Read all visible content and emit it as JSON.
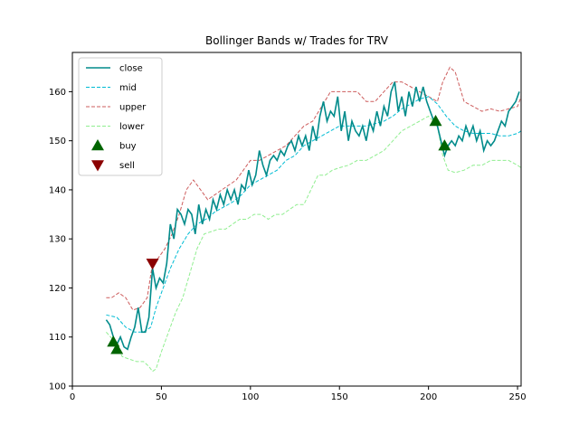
{
  "chart_data": {
    "type": "line",
    "title": "Bollinger Bands w/ Trades for TRV",
    "xlabel": "",
    "ylabel": "",
    "xlim": [
      0,
      252
    ],
    "ylim": [
      100,
      168
    ],
    "x_ticks": [
      0,
      50,
      100,
      150,
      200,
      250
    ],
    "y_ticks": [
      100,
      110,
      120,
      130,
      140,
      150,
      160
    ],
    "grid": false,
    "legend_position": "top-left",
    "series": [
      {
        "name": "close",
        "color": "#008b8b",
        "style": "solid",
        "points": [
          [
            19,
            113.5
          ],
          [
            21,
            112.5
          ],
          [
            23,
            110
          ],
          [
            25,
            108.5
          ],
          [
            27,
            110
          ],
          [
            29,
            108
          ],
          [
            31,
            107.5
          ],
          [
            33,
            110
          ],
          [
            35,
            112
          ],
          [
            37,
            116
          ],
          [
            39,
            111
          ],
          [
            41,
            111
          ],
          [
            43,
            114
          ],
          [
            45,
            124
          ],
          [
            47,
            120
          ],
          [
            49,
            122
          ],
          [
            51,
            121
          ],
          [
            53,
            125
          ],
          [
            55,
            133
          ],
          [
            57,
            130
          ],
          [
            59,
            136
          ],
          [
            61,
            135
          ],
          [
            63,
            133
          ],
          [
            65,
            136
          ],
          [
            67,
            135
          ],
          [
            69,
            131
          ],
          [
            71,
            137
          ],
          [
            73,
            133
          ],
          [
            75,
            136
          ],
          [
            77,
            134
          ],
          [
            79,
            138
          ],
          [
            81,
            136
          ],
          [
            83,
            139
          ],
          [
            85,
            137
          ],
          [
            87,
            140
          ],
          [
            89,
            138
          ],
          [
            91,
            140
          ],
          [
            93,
            137
          ],
          [
            95,
            141
          ],
          [
            97,
            140
          ],
          [
            99,
            144
          ],
          [
            101,
            141
          ],
          [
            103,
            143
          ],
          [
            105,
            148
          ],
          [
            107,
            145
          ],
          [
            109,
            143
          ],
          [
            111,
            146
          ],
          [
            113,
            147
          ],
          [
            115,
            146
          ],
          [
            117,
            148
          ],
          [
            119,
            147
          ],
          [
            121,
            149
          ],
          [
            123,
            150
          ],
          [
            125,
            148
          ],
          [
            127,
            151
          ],
          [
            129,
            149
          ],
          [
            131,
            151
          ],
          [
            133,
            148
          ],
          [
            135,
            153
          ],
          [
            137,
            150
          ],
          [
            139,
            155
          ],
          [
            141,
            158
          ],
          [
            143,
            154
          ],
          [
            145,
            156
          ],
          [
            147,
            155
          ],
          [
            149,
            159
          ],
          [
            151,
            152
          ],
          [
            153,
            156
          ],
          [
            155,
            150
          ],
          [
            157,
            154
          ],
          [
            159,
            152
          ],
          [
            161,
            151
          ],
          [
            163,
            153
          ],
          [
            165,
            150
          ],
          [
            167,
            154
          ],
          [
            169,
            152
          ],
          [
            171,
            156
          ],
          [
            173,
            153
          ],
          [
            175,
            157
          ],
          [
            177,
            155
          ],
          [
            179,
            160
          ],
          [
            181,
            162
          ],
          [
            183,
            156
          ],
          [
            185,
            159
          ],
          [
            187,
            155
          ],
          [
            189,
            160
          ],
          [
            191,
            157
          ],
          [
            193,
            161
          ],
          [
            195,
            158
          ],
          [
            197,
            161
          ],
          [
            199,
            158
          ],
          [
            201,
            156
          ],
          [
            203,
            154
          ],
          [
            205,
            153
          ],
          [
            207,
            150
          ],
          [
            209,
            147
          ],
          [
            211,
            149
          ],
          [
            213,
            150
          ],
          [
            215,
            149
          ],
          [
            217,
            151
          ],
          [
            219,
            150
          ],
          [
            221,
            153
          ],
          [
            223,
            151
          ],
          [
            225,
            153
          ],
          [
            227,
            150
          ],
          [
            229,
            152
          ],
          [
            231,
            148
          ],
          [
            233,
            150
          ],
          [
            235,
            149
          ],
          [
            237,
            150
          ],
          [
            239,
            152
          ],
          [
            241,
            154
          ],
          [
            243,
            153
          ],
          [
            245,
            156
          ],
          [
            247,
            157
          ],
          [
            249,
            158
          ],
          [
            251,
            160
          ]
        ]
      },
      {
        "name": "mid",
        "color": "#00bcd4",
        "style": "dashed",
        "points": [
          [
            19,
            114.5
          ],
          [
            25,
            114
          ],
          [
            30,
            112
          ],
          [
            35,
            111
          ],
          [
            40,
            111
          ],
          [
            44,
            112
          ],
          [
            47,
            116
          ],
          [
            50,
            119
          ],
          [
            55,
            124
          ],
          [
            60,
            128
          ],
          [
            65,
            131
          ],
          [
            70,
            133
          ],
          [
            75,
            134
          ],
          [
            80,
            135.5
          ],
          [
            85,
            136.5
          ],
          [
            90,
            137.5
          ],
          [
            95,
            139
          ],
          [
            100,
            141
          ],
          [
            105,
            142
          ],
          [
            110,
            143
          ],
          [
            115,
            144
          ],
          [
            120,
            146
          ],
          [
            125,
            147
          ],
          [
            130,
            149
          ],
          [
            135,
            150
          ],
          [
            140,
            151
          ],
          [
            145,
            152
          ],
          [
            150,
            153
          ],
          [
            155,
            153
          ],
          [
            160,
            153
          ],
          [
            165,
            153
          ],
          [
            170,
            153.5
          ],
          [
            175,
            154
          ],
          [
            180,
            155
          ],
          [
            185,
            156.5
          ],
          [
            190,
            157.5
          ],
          [
            195,
            158.5
          ],
          [
            200,
            159
          ],
          [
            205,
            157.5
          ],
          [
            210,
            155
          ],
          [
            215,
            153
          ],
          [
            220,
            152
          ],
          [
            225,
            151.5
          ],
          [
            230,
            151.5
          ],
          [
            235,
            151.5
          ],
          [
            240,
            151
          ],
          [
            245,
            151
          ],
          [
            250,
            151.5
          ],
          [
            252,
            152
          ]
        ]
      },
      {
        "name": "upper",
        "color": "#cd5c5c",
        "style": "dashed",
        "points": [
          [
            19,
            118
          ],
          [
            22,
            118
          ],
          [
            26,
            119
          ],
          [
            30,
            118
          ],
          [
            34,
            115.5
          ],
          [
            38,
            116
          ],
          [
            42,
            118
          ],
          [
            45,
            125
          ],
          [
            48,
            126
          ],
          [
            52,
            128
          ],
          [
            56,
            131
          ],
          [
            60,
            135
          ],
          [
            64,
            140
          ],
          [
            68,
            142
          ],
          [
            72,
            140
          ],
          [
            76,
            138
          ],
          [
            80,
            139
          ],
          [
            84,
            140
          ],
          [
            88,
            141
          ],
          [
            92,
            142
          ],
          [
            96,
            144
          ],
          [
            100,
            146
          ],
          [
            105,
            146
          ],
          [
            110,
            147
          ],
          [
            115,
            148
          ],
          [
            120,
            149
          ],
          [
            125,
            151
          ],
          [
            130,
            153
          ],
          [
            135,
            154
          ],
          [
            140,
            157
          ],
          [
            145,
            160
          ],
          [
            150,
            160
          ],
          [
            155,
            160
          ],
          [
            160,
            160
          ],
          [
            165,
            158
          ],
          [
            170,
            158
          ],
          [
            175,
            160
          ],
          [
            180,
            162
          ],
          [
            185,
            162
          ],
          [
            190,
            161
          ],
          [
            195,
            160
          ],
          [
            200,
            159
          ],
          [
            205,
            158
          ],
          [
            208,
            162
          ],
          [
            212,
            165
          ],
          [
            215,
            164
          ],
          [
            220,
            158
          ],
          [
            225,
            157
          ],
          [
            230,
            156
          ],
          [
            235,
            156.5
          ],
          [
            240,
            156
          ],
          [
            245,
            156.5
          ],
          [
            250,
            157
          ],
          [
            252,
            159
          ]
        ]
      },
      {
        "name": "lower",
        "color": "#90ee90",
        "style": "dashed",
        "points": [
          [
            19,
            111
          ],
          [
            24,
            109
          ],
          [
            28,
            106
          ],
          [
            32,
            105.5
          ],
          [
            36,
            105
          ],
          [
            40,
            105
          ],
          [
            43,
            104
          ],
          [
            45,
            103
          ],
          [
            47,
            103.5
          ],
          [
            50,
            107
          ],
          [
            54,
            111
          ],
          [
            58,
            115
          ],
          [
            62,
            118
          ],
          [
            66,
            123
          ],
          [
            70,
            128
          ],
          [
            74,
            131
          ],
          [
            78,
            131.5
          ],
          [
            82,
            132
          ],
          [
            86,
            132
          ],
          [
            90,
            133
          ],
          [
            94,
            134
          ],
          [
            98,
            134
          ],
          [
            102,
            135
          ],
          [
            106,
            135
          ],
          [
            110,
            134
          ],
          [
            114,
            135
          ],
          [
            118,
            135
          ],
          [
            122,
            136
          ],
          [
            126,
            137
          ],
          [
            130,
            137
          ],
          [
            134,
            140
          ],
          [
            138,
            143
          ],
          [
            142,
            143
          ],
          [
            146,
            144
          ],
          [
            150,
            144.5
          ],
          [
            155,
            145
          ],
          [
            160,
            146
          ],
          [
            165,
            146
          ],
          [
            170,
            147
          ],
          [
            175,
            148
          ],
          [
            180,
            150
          ],
          [
            185,
            152
          ],
          [
            190,
            153
          ],
          [
            195,
            154
          ],
          [
            200,
            155
          ],
          [
            205,
            153
          ],
          [
            208,
            147
          ],
          [
            211,
            144
          ],
          [
            215,
            143.5
          ],
          [
            220,
            144
          ],
          [
            225,
            145
          ],
          [
            230,
            145
          ],
          [
            235,
            146
          ],
          [
            240,
            146
          ],
          [
            245,
            146
          ],
          [
            250,
            145
          ],
          [
            252,
            144.5
          ]
        ]
      }
    ],
    "trades": {
      "buy": {
        "name": "buy",
        "color": "#006400",
        "points": [
          [
            23,
            109
          ],
          [
            25,
            107.5
          ],
          [
            204,
            154
          ],
          [
            209,
            149
          ]
        ]
      },
      "sell": {
        "name": "sell",
        "color": "#8b0000",
        "points": [
          [
            45,
            125
          ]
        ]
      }
    }
  }
}
